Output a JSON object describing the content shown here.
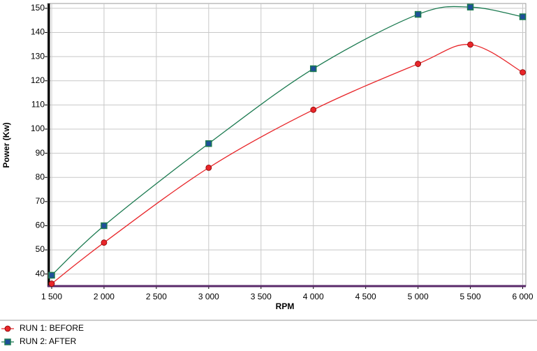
{
  "chart_data": {
    "type": "line",
    "x_label": "RPM",
    "y_label": "Power (Kw)",
    "x": [
      1500,
      2000,
      3000,
      4000,
      5000,
      5500,
      6000
    ],
    "series": [
      {
        "name": "RUN 1: BEFORE",
        "color": "#e8262a",
        "marker": "circle",
        "values": [
          36,
          53,
          84,
          108,
          127,
          135,
          123.5
        ]
      },
      {
        "name": "RUN 2: AFTER",
        "color": "#1b7a50",
        "marker_color": "#1f4f9a",
        "marker": "square",
        "values": [
          39.5,
          60,
          94,
          125,
          147.5,
          150.5,
          146.5
        ]
      }
    ],
    "xlim": [
      1460,
      6030
    ],
    "ylim": [
      35,
      152
    ],
    "xticks": [
      {
        "value": 1500,
        "label": "1 500"
      },
      {
        "value": 2000,
        "label": "2 000"
      },
      {
        "value": 2500,
        "label": "2 500"
      },
      {
        "value": 3000,
        "label": "3 000"
      },
      {
        "value": 3500,
        "label": "3 500"
      },
      {
        "value": 4000,
        "label": "4 000"
      },
      {
        "value": 4500,
        "label": "4 500"
      },
      {
        "value": 5000,
        "label": "5 000"
      },
      {
        "value": 5500,
        "label": "5 500"
      },
      {
        "value": 6000,
        "label": "6 000"
      }
    ],
    "yticks": [
      40,
      50,
      60,
      70,
      80,
      90,
      100,
      110,
      120,
      130,
      140,
      150
    ],
    "grid": true,
    "legend": "bottom-left"
  }
}
